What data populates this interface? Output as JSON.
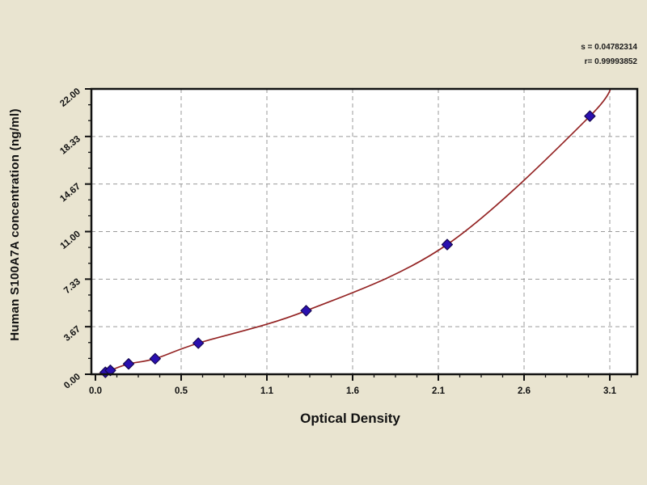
{
  "figure": {
    "background": "#e9e4d0",
    "plot_background": "#ffffff",
    "axis_color": "#111111",
    "grid_color": "#9a9a9a",
    "curve_color": "#942424",
    "point_fill": "#2a10b0",
    "point_stroke": "#140650"
  },
  "chart_data": {
    "type": "scatter",
    "title": "",
    "xlabel": "Optical Density",
    "ylabel": "Human S100A7A concentration (ng/ml)",
    "x_tick_labels": [
      "0.0",
      "0.5",
      "1.1",
      "1.6",
      "2.1",
      "2.6",
      "3.1"
    ],
    "y_tick_labels": [
      "0.00",
      "3.67",
      "7.33",
      "11.00",
      "14.67",
      "18.33",
      "22.00"
    ],
    "xlim": [
      0,
      3.1
    ],
    "ylim": [
      0,
      22
    ],
    "grid": true,
    "legend": false,
    "points": [
      [
        0.06,
        0.15
      ],
      [
        0.09,
        0.3
      ],
      [
        0.2,
        0.8
      ],
      [
        0.36,
        1.2
      ],
      [
        0.62,
        2.4
      ],
      [
        1.27,
        4.9
      ],
      [
        2.12,
        10.0
      ],
      [
        2.98,
        19.9
      ]
    ],
    "curve_points": [
      [
        0.02,
        0.03
      ],
      [
        0.06,
        0.15
      ],
      [
        0.09,
        0.3
      ],
      [
        0.2,
        0.8
      ],
      [
        0.36,
        1.2
      ],
      [
        0.62,
        2.4
      ],
      [
        1.27,
        4.9
      ],
      [
        2.12,
        10.0
      ],
      [
        2.98,
        19.9
      ],
      [
        3.12,
        22.8
      ]
    ],
    "stats": {
      "s_label": "s = 0.04782314",
      "r_label": "r= 0.99993852"
    }
  }
}
